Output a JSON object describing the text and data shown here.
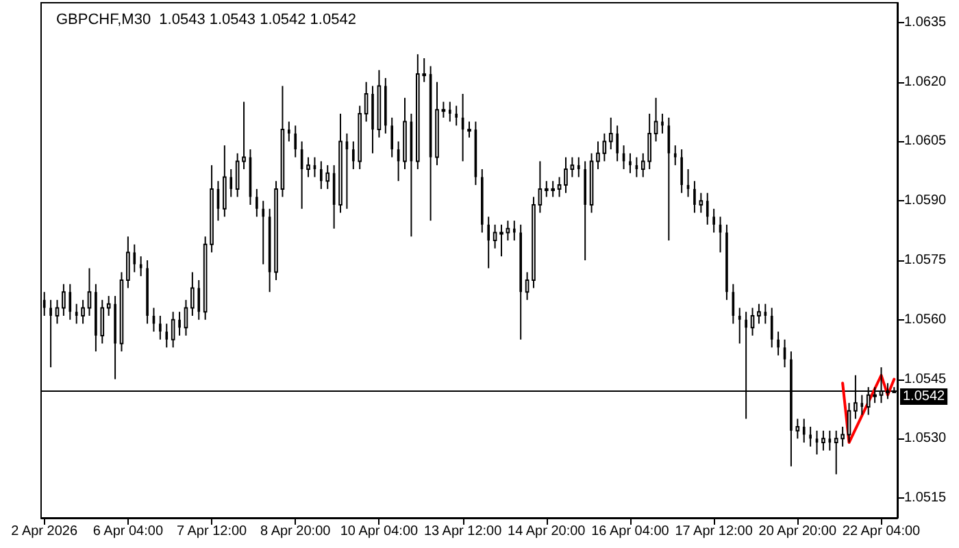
{
  "chart_data": {
    "type": "candlestick",
    "title": "GBPCHF,M30  1.0543 1.0543 1.0542 1.0542",
    "color": "#000000",
    "categories": [
      "2 Apr 2026",
      null,
      null,
      null,
      null,
      null,
      null,
      null,
      null,
      null,
      null,
      null,
      null,
      "6 Apr 04:00",
      null,
      null,
      null,
      null,
      null,
      null,
      null,
      null,
      null,
      null,
      null,
      null,
      "7 Apr 12:00",
      null,
      null,
      null,
      null,
      null,
      null,
      null,
      null,
      null,
      null,
      null,
      null,
      "8 Apr 20:00",
      null,
      null,
      null,
      null,
      null,
      null,
      null,
      null,
      null,
      null,
      null,
      null,
      "10 Apr 04:00",
      null,
      null,
      null,
      null,
      null,
      null,
      null,
      null,
      null,
      null,
      null,
      null,
      "13 Apr 12:00",
      null,
      null,
      null,
      null,
      null,
      null,
      null,
      null,
      null,
      null,
      null,
      null,
      "14 Apr 20:00",
      null,
      null,
      null,
      null,
      null,
      null,
      null,
      null,
      null,
      null,
      null,
      null,
      "16 Apr 04:00",
      null,
      null,
      null,
      null,
      null,
      null,
      null,
      null,
      null,
      null,
      null,
      null,
      "17 Apr 12:00",
      null,
      null,
      null,
      null,
      null,
      null,
      null,
      null,
      null,
      null,
      null,
      null,
      "20 Apr 20:00",
      null,
      null,
      null,
      null,
      null,
      null,
      null,
      null,
      null,
      null,
      null,
      null,
      "22 Apr 04:00",
      null,
      null
    ],
    "ohlc": [
      [
        1.0565,
        1.0567,
        1.0561,
        1.0563
      ],
      [
        1.0563,
        1.0565,
        1.0548,
        1.0561
      ],
      [
        1.0561,
        1.0565,
        1.0559,
        1.0563
      ],
      [
        1.0563,
        1.0569,
        1.0561,
        1.0567
      ],
      [
        1.0567,
        1.0569,
        1.056,
        1.0562
      ],
      [
        1.0562,
        1.0564,
        1.0559,
        1.0561
      ],
      [
        1.0561,
        1.0565,
        1.0559,
        1.0563
      ],
      [
        1.0563,
        1.0573,
        1.0561,
        1.0567
      ],
      [
        1.0567,
        1.0569,
        1.0552,
        1.0556
      ],
      [
        1.0556,
        1.0565,
        1.0554,
        1.0563
      ],
      [
        1.0563,
        1.0566,
        1.0561,
        1.0564
      ],
      [
        1.0564,
        1.0566,
        1.0545,
        1.0554
      ],
      [
        1.0554,
        1.0572,
        1.0552,
        1.057
      ],
      [
        1.057,
        1.0581,
        1.0568,
        1.0577
      ],
      [
        1.0577,
        1.0579,
        1.0572,
        1.0574
      ],
      [
        1.0574,
        1.0576,
        1.0571,
        1.0573
      ],
      [
        1.0573,
        1.0575,
        1.0559,
        1.0561
      ],
      [
        1.0561,
        1.0563,
        1.0557,
        1.0559
      ],
      [
        1.0559,
        1.0561,
        1.0555,
        1.0557
      ],
      [
        1.0557,
        1.0559,
        1.0553,
        1.0555
      ],
      [
        1.0555,
        1.0562,
        1.0553,
        1.056
      ],
      [
        1.056,
        1.0562,
        1.0556,
        1.0558
      ],
      [
        1.0558,
        1.0565,
        1.0556,
        1.0563
      ],
      [
        1.0563,
        1.0572,
        1.0561,
        1.0568
      ],
      [
        1.0568,
        1.057,
        1.056,
        1.0562
      ],
      [
        1.0562,
        1.0581,
        1.056,
        1.0579
      ],
      [
        1.0579,
        1.0599,
        1.0577,
        1.0593
      ],
      [
        1.0593,
        1.0595,
        1.0585,
        1.0588
      ],
      [
        1.0588,
        1.0604,
        1.0586,
        1.0596
      ],
      [
        1.0596,
        1.0598,
        1.0591,
        1.0593
      ],
      [
        1.0593,
        1.0602,
        1.0591,
        1.06
      ],
      [
        1.06,
        1.0615,
        1.0598,
        1.0601
      ],
      [
        1.0601,
        1.0603,
        1.0589,
        1.0591
      ],
      [
        1.0591,
        1.0593,
        1.0586,
        1.0588
      ],
      [
        1.0588,
        1.059,
        1.0574,
        1.0586
      ],
      [
        1.0586,
        1.0588,
        1.0567,
        1.0572
      ],
      [
        1.0572,
        1.0595,
        1.057,
        1.0593
      ],
      [
        1.0593,
        1.0619,
        1.0591,
        1.0608
      ],
      [
        1.0608,
        1.061,
        1.0605,
        1.0607
      ],
      [
        1.0607,
        1.0609,
        1.0601,
        1.0603
      ],
      [
        1.0603,
        1.0605,
        1.0588,
        1.0598
      ],
      [
        1.0598,
        1.0601,
        1.0596,
        1.0599
      ],
      [
        1.0599,
        1.0601,
        1.0596,
        1.0598
      ],
      [
        1.0598,
        1.06,
        1.0593,
        1.0595
      ],
      [
        1.0595,
        1.0599,
        1.0593,
        1.0597
      ],
      [
        1.0597,
        1.0599,
        1.0583,
        1.0589
      ],
      [
        1.0589,
        1.0612,
        1.0587,
        1.0605
      ],
      [
        1.0605,
        1.0607,
        1.0588,
        1.0603
      ],
      [
        1.0603,
        1.0605,
        1.0598,
        1.06
      ],
      [
        1.06,
        1.0614,
        1.0598,
        1.0612
      ],
      [
        1.0612,
        1.062,
        1.061,
        1.0617
      ],
      [
        1.0617,
        1.0619,
        1.0602,
        1.0608
      ],
      [
        1.0608,
        1.0623,
        1.0606,
        1.0619
      ],
      [
        1.0619,
        1.0621,
        1.0607,
        1.0609
      ],
      [
        1.0609,
        1.0611,
        1.0601,
        1.0603
      ],
      [
        1.0603,
        1.0605,
        1.0595,
        1.06
      ],
      [
        1.06,
        1.0616,
        1.0598,
        1.061
      ],
      [
        1.061,
        1.0612,
        1.0581,
        1.06
      ],
      [
        1.06,
        1.0627,
        1.0598,
        1.0622
      ],
      [
        1.0622,
        1.0626,
        1.062,
        1.0622
      ],
      [
        1.0622,
        1.0624,
        1.0585,
        1.0601
      ],
      [
        1.0601,
        1.062,
        1.0599,
        1.0613
      ],
      [
        1.0613,
        1.0615,
        1.0611,
        1.0613
      ],
      [
        1.0613,
        1.0615,
        1.061,
        1.0612
      ],
      [
        1.0612,
        1.0614,
        1.0609,
        1.0611
      ],
      [
        1.0611,
        1.0617,
        1.06,
        1.0608
      ],
      [
        1.0608,
        1.061,
        1.0606,
        1.0608
      ],
      [
        1.0608,
        1.061,
        1.0594,
        1.0596
      ],
      [
        1.0596,
        1.0598,
        1.0582,
        1.0584
      ],
      [
        1.0584,
        1.0586,
        1.0573,
        1.058
      ],
      [
        1.058,
        1.0584,
        1.0578,
        1.0582
      ],
      [
        1.0582,
        1.0584,
        1.0576,
        1.0582
      ],
      [
        1.0582,
        1.0585,
        1.058,
        1.0583
      ],
      [
        1.0583,
        1.0585,
        1.058,
        1.0582
      ],
      [
        1.0582,
        1.0584,
        1.0555,
        1.0567
      ],
      [
        1.0567,
        1.0572,
        1.0565,
        1.057
      ],
      [
        1.057,
        1.0591,
        1.0568,
        1.0589
      ],
      [
        1.0589,
        1.06,
        1.0587,
        1.0593
      ],
      [
        1.0593,
        1.0595,
        1.0591,
        1.0593
      ],
      [
        1.0593,
        1.0595,
        1.0591,
        1.0593
      ],
      [
        1.0593,
        1.0596,
        1.0591,
        1.0594
      ],
      [
        1.0594,
        1.0601,
        1.0592,
        1.0598
      ],
      [
        1.0598,
        1.0601,
        1.0596,
        1.0599
      ],
      [
        1.0599,
        1.0601,
        1.0596,
        1.0598
      ],
      [
        1.0598,
        1.06,
        1.0575,
        1.0589
      ],
      [
        1.0589,
        1.0602,
        1.0587,
        1.06
      ],
      [
        1.06,
        1.0605,
        1.0598,
        1.0602
      ],
      [
        1.0602,
        1.0607,
        1.06,
        1.0605
      ],
      [
        1.0605,
        1.0611,
        1.0603,
        1.0607
      ],
      [
        1.0607,
        1.0609,
        1.06,
        1.0602
      ],
      [
        1.0602,
        1.0604,
        1.0598,
        1.06
      ],
      [
        1.06,
        1.0602,
        1.0597,
        1.0599
      ],
      [
        1.0599,
        1.0601,
        1.0596,
        1.0598
      ],
      [
        1.0598,
        1.0602,
        1.0596,
        1.06
      ],
      [
        1.06,
        1.0612,
        1.0598,
        1.0607
      ],
      [
        1.0607,
        1.0616,
        1.0605,
        1.061
      ],
      [
        1.061,
        1.0612,
        1.0607,
        1.0609
      ],
      [
        1.0609,
        1.0611,
        1.058,
        1.0602
      ],
      [
        1.0602,
        1.0604,
        1.0599,
        1.0601
      ],
      [
        1.0601,
        1.0603,
        1.0592,
        1.0594
      ],
      [
        1.0594,
        1.0598,
        1.0591,
        1.0593
      ],
      [
        1.0593,
        1.0595,
        1.0587,
        1.0589
      ],
      [
        1.0589,
        1.0592,
        1.0587,
        1.059
      ],
      [
        1.059,
        1.0592,
        1.0584,
        1.0586
      ],
      [
        1.0586,
        1.0588,
        1.0582,
        1.0584
      ],
      [
        1.0584,
        1.0586,
        1.0577,
        1.0582
      ],
      [
        1.0582,
        1.0584,
        1.0565,
        1.0567
      ],
      [
        1.0567,
        1.0569,
        1.0559,
        1.0561
      ],
      [
        1.0561,
        1.0563,
        1.0554,
        1.056
      ],
      [
        1.056,
        1.0562,
        1.0535,
        1.0558
      ],
      [
        1.0558,
        1.0563,
        1.0556,
        1.0561
      ],
      [
        1.0561,
        1.0564,
        1.0559,
        1.0562
      ],
      [
        1.0562,
        1.0564,
        1.0559,
        1.0561
      ],
      [
        1.0561,
        1.0563,
        1.0553,
        1.0555
      ],
      [
        1.0555,
        1.0557,
        1.0551,
        1.0553
      ],
      [
        1.0553,
        1.0555,
        1.0548,
        1.055
      ],
      [
        1.055,
        1.0552,
        1.0523,
        1.0532
      ],
      [
        1.0532,
        1.0535,
        1.053,
        1.0533
      ],
      [
        1.0533,
        1.0535,
        1.0529,
        1.0531
      ],
      [
        1.0531,
        1.0533,
        1.0528,
        1.053
      ],
      [
        1.053,
        1.0532,
        1.0526,
        1.0529
      ],
      [
        1.0529,
        1.0532,
        1.0527,
        1.053
      ],
      [
        1.053,
        1.0532,
        1.0527,
        1.0529
      ],
      [
        1.0529,
        1.0532,
        1.0521,
        1.053
      ],
      [
        1.053,
        1.0533,
        1.0528,
        1.0531
      ],
      [
        1.0531,
        1.0539,
        1.0529,
        1.0537
      ],
      [
        1.0537,
        1.0546,
        1.0535,
        1.0539
      ],
      [
        1.0539,
        1.0541,
        1.0536,
        1.0538
      ],
      [
        1.0538,
        1.0543,
        1.0536,
        1.0541
      ],
      [
        1.0541,
        1.0543,
        1.0539,
        1.0541
      ],
      [
        1.0541,
        1.0548,
        1.0539,
        1.0542
      ],
      [
        1.0542,
        1.0544,
        1.054,
        1.0542
      ],
      [
        1.0542,
        1.0543,
        1.0542,
        1.0542
      ]
    ],
    "series": [
      {
        "type": "line",
        "color": "#ff0000",
        "values": [
          null,
          null,
          null,
          null,
          null,
          null,
          null,
          null,
          null,
          null,
          null,
          null,
          null,
          null,
          null,
          null,
          null,
          null,
          null,
          null,
          null,
          null,
          null,
          null,
          null,
          null,
          null,
          null,
          null,
          null,
          null,
          null,
          null,
          null,
          null,
          null,
          null,
          null,
          null,
          null,
          null,
          null,
          null,
          null,
          null,
          null,
          null,
          null,
          null,
          null,
          null,
          null,
          null,
          null,
          null,
          null,
          null,
          null,
          null,
          null,
          null,
          null,
          null,
          null,
          null,
          null,
          null,
          null,
          null,
          null,
          null,
          null,
          null,
          null,
          null,
          null,
          null,
          null,
          null,
          null,
          null,
          null,
          null,
          null,
          null,
          null,
          null,
          null,
          null,
          null,
          null,
          null,
          null,
          null,
          null,
          null,
          null,
          null,
          null,
          null,
          null,
          null,
          null,
          null,
          null,
          null,
          null,
          null,
          null,
          null,
          null,
          null,
          null,
          null,
          null,
          null,
          null,
          null,
          null,
          null,
          null,
          null,
          null,
          null,
          1.0544,
          1.0529,
          null,
          null,
          null,
          null,
          1.0546,
          1.0541,
          1.0545
        ]
      }
    ],
    "ylim": [
      1.051,
      1.064
    ],
    "yticks": [
      1.0515,
      {
        "value": 1.053,
        "label": "1.0530"
      },
      1.0545,
      {
        "value": 1.056,
        "label": "1.0560"
      },
      1.0575,
      {
        "value": 1.059,
        "label": "1.0590"
      },
      1.0605,
      {
        "value": 1.062,
        "label": "1.0620"
      },
      1.0635
    ],
    "ref_lines": [
      {
        "axis": "y",
        "value": 1.0542,
        "label": "1.0542",
        "color": "#000000"
      }
    ],
    "grid": false,
    "line_style": "solid",
    "marker": "none"
  }
}
